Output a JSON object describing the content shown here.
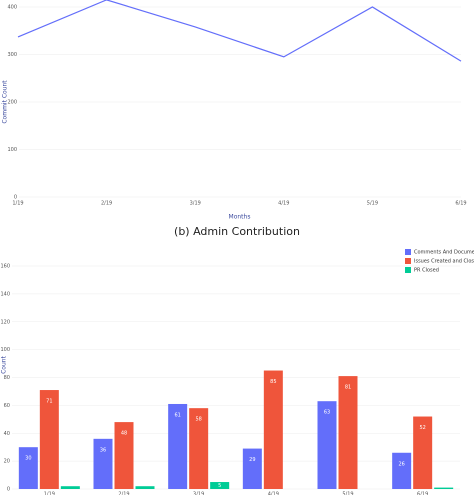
{
  "chart_data": [
    {
      "type": "line",
      "y_label": "Commit Count",
      "x_label": "Months",
      "categories": [
        "1/19",
        "2/19",
        "3/19",
        "4/19",
        "5/19",
        "6/19"
      ],
      "series": [
        {
          "name": "Commit Count",
          "color": "#636efa",
          "values": [
            337,
            415,
            358,
            295,
            400,
            286
          ]
        }
      ],
      "ylim": [
        0,
        415
      ],
      "yticks": [
        0,
        100,
        200,
        300,
        400
      ],
      "grid": true
    },
    {
      "type": "bar",
      "caption": "(b) Admin Contribution",
      "y_label": "Count",
      "categories": [
        "1/19",
        "2/19",
        "3/19",
        "4/19",
        "5/19",
        "6/19"
      ],
      "series": [
        {
          "name": "Comments And Documentatic",
          "color": "#636efa",
          "values": [
            30,
            36,
            61,
            29,
            63,
            26
          ]
        },
        {
          "name": "Issues Created and Closed",
          "color": "#ef553b",
          "values": [
            71,
            48,
            58,
            85,
            81,
            52
          ]
        },
        {
          "name": "PR Closed",
          "color": "#00cc96",
          "values": [
            2,
            2,
            5,
            0,
            0,
            1
          ]
        }
      ],
      "ylim": [
        0,
        160
      ],
      "yticks": [
        0,
        20,
        40,
        60,
        80,
        100,
        120,
        140,
        160
      ],
      "grid": true,
      "legend": "top-right"
    }
  ]
}
